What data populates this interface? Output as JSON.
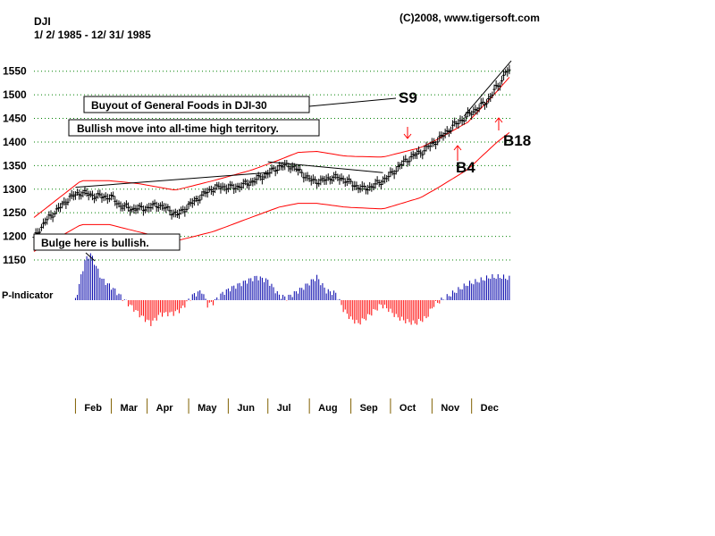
{
  "header": {
    "symbol": "DJI",
    "date_range": "1/ 2/ 1985 - 12/ 31/ 1985",
    "copyright": "(C)2008, www.tigersoft.com"
  },
  "indicator_label": "P-Indicator",
  "annotations": {
    "buyout": "Buyout of General Foods in DJI-30",
    "bullish_move": "Bullish move into all-time high territory.",
    "bulge": "Bulge here is bullish.",
    "s9": "S9",
    "b4": "B4",
    "b18": "B18"
  },
  "colors": {
    "price_bars": "#000000",
    "bands": "#ff0000",
    "indicator_positive": "#0000aa",
    "indicator_negative": "#ff0000",
    "grid": "#008000"
  },
  "chart_data": {
    "type": "ohlc",
    "title": "DJI",
    "subtitle": "1/ 2/ 1985 - 12/ 31/ 1985",
    "ylim": [
      1150,
      1575
    ],
    "y_ticks": [
      1150,
      1200,
      1250,
      1300,
      1350,
      1400,
      1450,
      1500,
      1550
    ],
    "grid": true,
    "months": [
      "Feb",
      "Mar",
      "Apr",
      "May",
      "Jun",
      "Jul",
      "Aug",
      "Sep",
      "Oct",
      "Nov",
      "Dec"
    ],
    "month_start_day": [
      22,
      41,
      60,
      82,
      103,
      124,
      146,
      168,
      189,
      211,
      232
    ],
    "total_trading_days": 253,
    "price_path": [
      [
        0,
        1195
      ],
      [
        3,
        1215
      ],
      [
        8,
        1240
      ],
      [
        14,
        1262
      ],
      [
        19,
        1282
      ],
      [
        25,
        1293
      ],
      [
        33,
        1285
      ],
      [
        41,
        1283
      ],
      [
        46,
        1265
      ],
      [
        52,
        1258
      ],
      [
        60,
        1260
      ],
      [
        66,
        1267
      ],
      [
        72,
        1255
      ],
      [
        76,
        1245
      ],
      [
        82,
        1265
      ],
      [
        88,
        1283
      ],
      [
        94,
        1300
      ],
      [
        100,
        1305
      ],
      [
        106,
        1303
      ],
      [
        112,
        1310
      ],
      [
        118,
        1320
      ],
      [
        124,
        1333
      ],
      [
        130,
        1348
      ],
      [
        136,
        1350
      ],
      [
        142,
        1335
      ],
      [
        146,
        1320
      ],
      [
        152,
        1316
      ],
      [
        158,
        1325
      ],
      [
        164,
        1322
      ],
      [
        170,
        1308
      ],
      [
        175,
        1300
      ],
      [
        180,
        1307
      ],
      [
        185,
        1318
      ],
      [
        189,
        1330
      ],
      [
        194,
        1350
      ],
      [
        200,
        1368
      ],
      [
        206,
        1380
      ],
      [
        211,
        1395
      ],
      [
        216,
        1410
      ],
      [
        222,
        1433
      ],
      [
        228,
        1450
      ],
      [
        234,
        1468
      ],
      [
        240,
        1485
      ],
      [
        244,
        1508
      ],
      [
        248,
        1530
      ],
      [
        250,
        1550
      ],
      [
        253,
        1545
      ]
    ],
    "upper_band_path": [
      [
        0,
        1240
      ],
      [
        25,
        1318
      ],
      [
        40,
        1318
      ],
      [
        55,
        1312
      ],
      [
        75,
        1298
      ],
      [
        95,
        1318
      ],
      [
        115,
        1340
      ],
      [
        130,
        1362
      ],
      [
        140,
        1378
      ],
      [
        150,
        1380
      ],
      [
        165,
        1370
      ],
      [
        185,
        1368
      ],
      [
        205,
        1388
      ],
      [
        215,
        1408
      ],
      [
        230,
        1442
      ],
      [
        245,
        1505
      ],
      [
        253,
        1542
      ]
    ],
    "lower_band_path": [
      [
        0,
        1168
      ],
      [
        25,
        1225
      ],
      [
        40,
        1225
      ],
      [
        55,
        1210
      ],
      [
        75,
        1190
      ],
      [
        95,
        1210
      ],
      [
        115,
        1240
      ],
      [
        130,
        1262
      ],
      [
        140,
        1270
      ],
      [
        150,
        1270
      ],
      [
        165,
        1262
      ],
      [
        185,
        1258
      ],
      [
        205,
        1282
      ],
      [
        215,
        1305
      ],
      [
        230,
        1342
      ],
      [
        245,
        1398
      ],
      [
        253,
        1423
      ]
    ],
    "indicator_path": [
      [
        0,
        0.0
      ],
      [
        5,
        0.85
      ],
      [
        8,
        1.0
      ],
      [
        14,
        0.45
      ],
      [
        20,
        0.25
      ],
      [
        26,
        0.0
      ],
      [
        30,
        -0.15
      ],
      [
        35,
        -0.35
      ],
      [
        40,
        -0.5
      ],
      [
        45,
        -0.3
      ],
      [
        52,
        -0.28
      ],
      [
        56,
        -0.2
      ],
      [
        62,
        0.1
      ],
      [
        67,
        0.2
      ],
      [
        70,
        -0.1
      ],
      [
        73,
        -0.05
      ],
      [
        78,
        0.15
      ],
      [
        82,
        0.25
      ],
      [
        90,
        0.4
      ],
      [
        96,
        0.5
      ],
      [
        102,
        0.42
      ],
      [
        108,
        0.1
      ],
      [
        112,
        0.05
      ],
      [
        120,
        0.25
      ],
      [
        128,
        0.5
      ],
      [
        133,
        0.2
      ],
      [
        138,
        0.15
      ],
      [
        142,
        -0.2
      ],
      [
        146,
        -0.4
      ],
      [
        150,
        -0.5
      ],
      [
        155,
        -0.35
      ],
      [
        162,
        -0.1
      ],
      [
        166,
        -0.2
      ],
      [
        170,
        -0.35
      ],
      [
        175,
        -0.45
      ],
      [
        180,
        -0.5
      ],
      [
        186,
        -0.38
      ],
      [
        190,
        -0.1
      ],
      [
        196,
        0.05
      ],
      [
        202,
        0.2
      ],
      [
        208,
        0.35
      ],
      [
        214,
        0.42
      ],
      [
        220,
        0.5
      ],
      [
        226,
        0.5
      ],
      [
        232,
        0.45
      ],
      [
        238,
        0.4
      ],
      [
        244,
        0.3
      ],
      [
        250,
        0.25
      ],
      [
        253,
        0.22
      ]
    ]
  }
}
